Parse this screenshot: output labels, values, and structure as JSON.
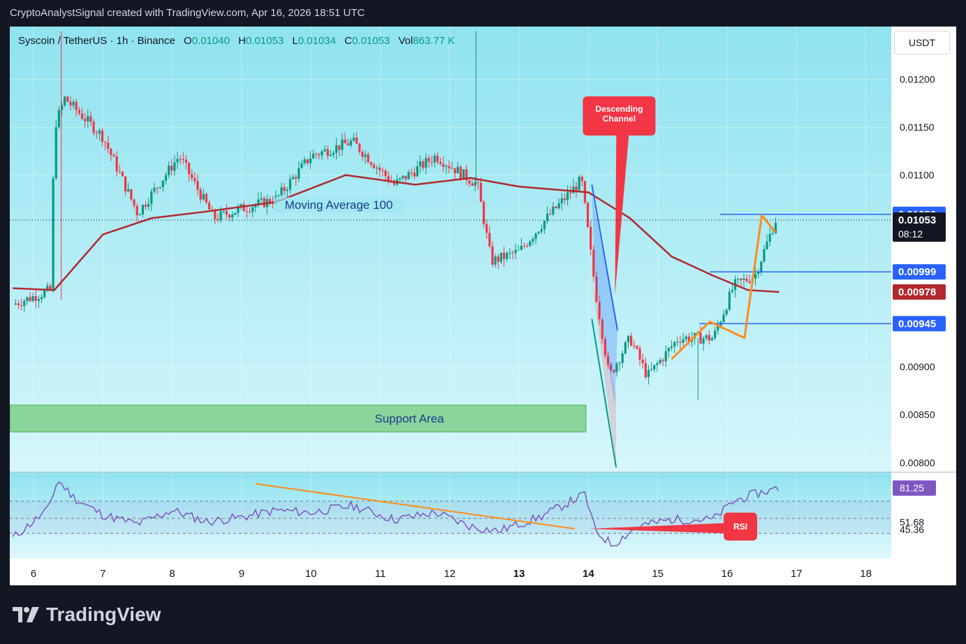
{
  "header": {
    "text": "CryptoAnalystSignal created with TradingView.com, Apr 16, 2026 18:51 UTC"
  },
  "legend": {
    "symbol": "Syscoin / TetherUS · 1h · Binance",
    "o_label": "O",
    "o": "0.01040",
    "h_label": "H",
    "h": "0.01053",
    "l_label": "L",
    "l": "0.01034",
    "c_label": "C",
    "c": "0.01053",
    "vol_label": "Vol",
    "vol": "863.77 K"
  },
  "currency_button": "USDT",
  "brand": "TradingView",
  "colors": {
    "up": "#089981",
    "down": "#f23645",
    "ma": "#b2282e",
    "rsi": "#7e57c2",
    "accent_blue": "#2962ff",
    "orange": "#ff8c1a"
  },
  "chart_data": [
    {
      "type": "candlestick",
      "x_ticks": [
        "6",
        "7",
        "8",
        "9",
        "10",
        "11",
        "12",
        "13",
        "14",
        "15",
        "16",
        "17",
        "18"
      ],
      "y_ticks": [
        "0.01200",
        "0.01150",
        "0.01100",
        "0.00900",
        "0.00850",
        "0.00800"
      ],
      "ylim": [
        0.0079,
        0.01255
      ],
      "price_labels": [
        {
          "value": "0.01059",
          "color": "#2962ff"
        },
        {
          "value": "0.01053",
          "sub": "08:12",
          "color": "#131722"
        },
        {
          "value": "0.00999",
          "color": "#2962ff"
        },
        {
          "value": "0.00978",
          "color": "#b2282e"
        },
        {
          "value": "0.00945",
          "color": "#2962ff"
        }
      ],
      "annotations": {
        "moving_average": "Moving Average 100",
        "support": "Support Area",
        "channel": "Descending Channel"
      },
      "key_points": [
        {
          "day": 5.7,
          "price": 0.00965
        },
        {
          "day": 6.25,
          "price": 0.0098
        },
        {
          "day": 6.3,
          "price": 0.0115
        },
        {
          "day": 6.45,
          "price": 0.0118
        },
        {
          "day": 7.0,
          "price": 0.0114
        },
        {
          "day": 7.5,
          "price": 0.0106
        },
        {
          "day": 8.1,
          "price": 0.0112
        },
        {
          "day": 8.6,
          "price": 0.01055
        },
        {
          "day": 9.0,
          "price": 0.01065
        },
        {
          "day": 9.5,
          "price": 0.01075
        },
        {
          "day": 10.0,
          "price": 0.0112
        },
        {
          "day": 10.6,
          "price": 0.01135
        },
        {
          "day": 11.2,
          "price": 0.0109
        },
        {
          "day": 11.8,
          "price": 0.0112
        },
        {
          "day": 12.4,
          "price": 0.0109
        },
        {
          "day": 12.6,
          "price": 0.0101
        },
        {
          "day": 13.0,
          "price": 0.0102
        },
        {
          "day": 13.4,
          "price": 0.01055
        },
        {
          "day": 13.9,
          "price": 0.01095
        },
        {
          "day": 14.1,
          "price": 0.0098
        },
        {
          "day": 14.3,
          "price": 0.0089
        },
        {
          "day": 14.6,
          "price": 0.0093
        },
        {
          "day": 14.85,
          "price": 0.0089
        },
        {
          "day": 15.3,
          "price": 0.0093
        },
        {
          "day": 15.8,
          "price": 0.0093
        },
        {
          "day": 16.1,
          "price": 0.00985
        },
        {
          "day": 16.4,
          "price": 0.00995
        },
        {
          "day": 16.7,
          "price": 0.01053
        }
      ],
      "ma100": [
        {
          "day": 5.7,
          "price": 0.00982
        },
        {
          "day": 6.3,
          "price": 0.0098
        },
        {
          "day": 7.0,
          "price": 0.01038
        },
        {
          "day": 7.7,
          "price": 0.01055
        },
        {
          "day": 8.5,
          "price": 0.01062
        },
        {
          "day": 9.5,
          "price": 0.01072
        },
        {
          "day": 10.5,
          "price": 0.011
        },
        {
          "day": 11.5,
          "price": 0.0109
        },
        {
          "day": 12.3,
          "price": 0.01097
        },
        {
          "day": 13.0,
          "price": 0.01088
        },
        {
          "day": 14.0,
          "price": 0.01082
        },
        {
          "day": 14.6,
          "price": 0.01055
        },
        {
          "day": 15.2,
          "price": 0.01015
        },
        {
          "day": 15.8,
          "price": 0.00995
        },
        {
          "day": 16.3,
          "price": 0.0098
        },
        {
          "day": 16.75,
          "price": 0.00978
        }
      ]
    },
    {
      "type": "line",
      "name": "RSI",
      "y_ticks": [
        "81.25",
        "51.68",
        "45.36"
      ],
      "ylim": [
        20,
        95
      ],
      "key_points": [
        {
          "day": 5.7,
          "price": 38
        },
        {
          "day": 6.2,
          "price": 62
        },
        {
          "day": 6.35,
          "price": 88
        },
        {
          "day": 6.6,
          "price": 72
        },
        {
          "day": 7.0,
          "price": 58
        },
        {
          "day": 7.5,
          "price": 50
        },
        {
          "day": 8.0,
          "price": 62
        },
        {
          "day": 8.5,
          "price": 52
        },
        {
          "day": 9.0,
          "price": 56
        },
        {
          "day": 9.5,
          "price": 62
        },
        {
          "day": 10.0,
          "price": 60
        },
        {
          "day": 10.6,
          "price": 66
        },
        {
          "day": 11.2,
          "price": 54
        },
        {
          "day": 11.8,
          "price": 60
        },
        {
          "day": 12.3,
          "price": 48
        },
        {
          "day": 12.7,
          "price": 44
        },
        {
          "day": 13.3,
          "price": 56
        },
        {
          "day": 13.95,
          "price": 76
        },
        {
          "day": 14.1,
          "price": 44
        },
        {
          "day": 14.35,
          "price": 32
        },
        {
          "day": 14.7,
          "price": 48
        },
        {
          "day": 15.2,
          "price": 54
        },
        {
          "day": 15.8,
          "price": 54
        },
        {
          "day": 16.1,
          "price": 70
        },
        {
          "day": 16.4,
          "price": 76
        },
        {
          "day": 16.75,
          "price": 81.25
        }
      ],
      "label": "RSI"
    }
  ]
}
